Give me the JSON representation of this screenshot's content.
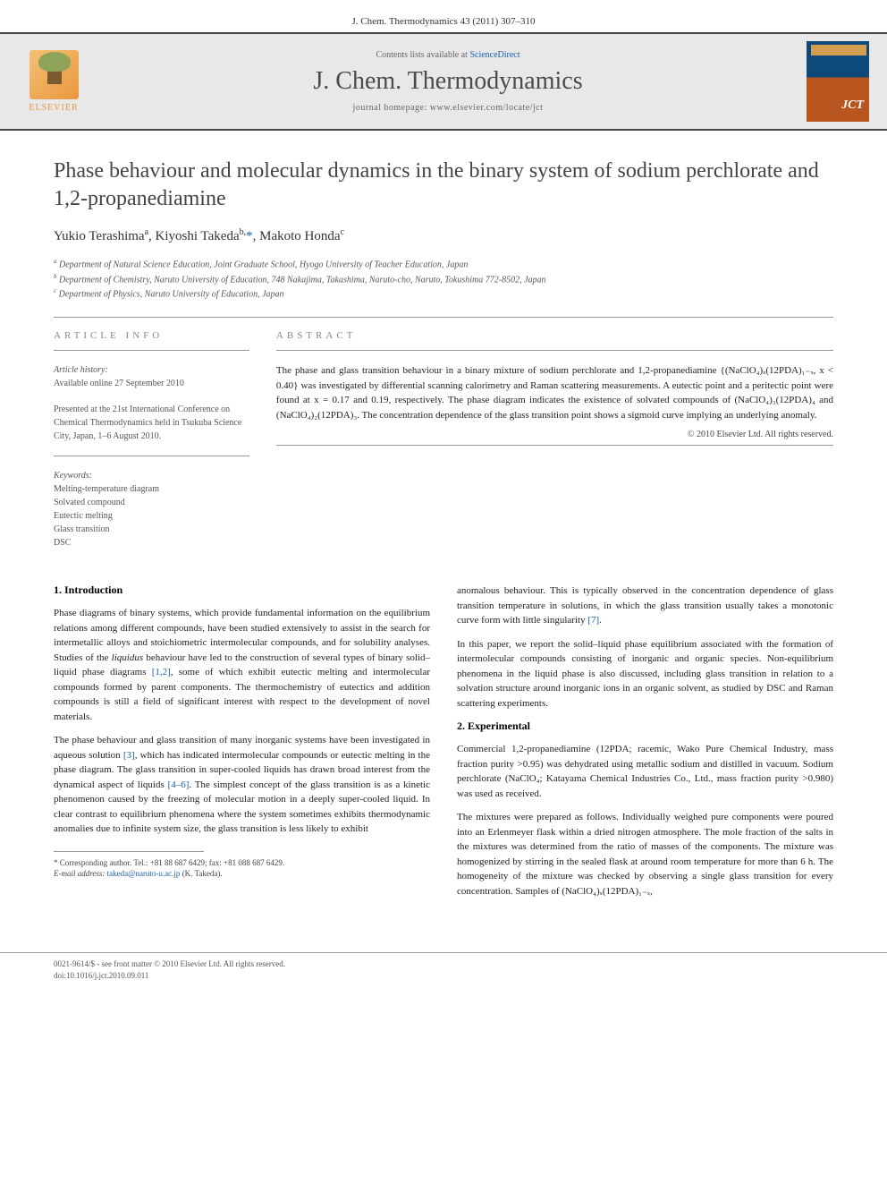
{
  "citation": "J. Chem. Thermodynamics 43 (2011) 307–310",
  "banner": {
    "publisher": "ELSEVIER",
    "contents_prefix": "Contents lists available at ",
    "contents_link": "ScienceDirect",
    "journal_name": "J. Chem. Thermodynamics",
    "homepage_label": "journal homepage: www.elsevier.com/locate/jct"
  },
  "title": "Phase behaviour and molecular dynamics in the binary system of sodium perchlorate and 1,2-propanediamine",
  "authors_html": "Yukio Terashima<sup>a</sup>, Kiyoshi Takeda<sup>b,</sup><span class='corr'>*</span>, Makoto Honda<sup>c</sup>",
  "affiliations": [
    "a Department of Natural Science Education, Joint Graduate School, Hyogo University of Teacher Education, Japan",
    "b Department of Chemistry, Naruto University of Education, 748 Nakajima, Takashima, Naruto-cho, Naruto, Tokushima 772-8502, Japan",
    "c Department of Physics, Naruto University of Education, Japan"
  ],
  "info_heading": "ARTICLE INFO",
  "abstract_heading": "ABSTRACT",
  "history_label": "Article history:",
  "history_text": "Available online 27 September 2010",
  "presented_text": "Presented at the 21st International Conference on Chemical Thermodynamics held in Tsukuba Science City, Japan, 1–6 August 2010.",
  "keywords_label": "Keywords:",
  "keywords": [
    "Melting-temperature diagram",
    "Solvated compound",
    "Eutectic melting",
    "Glass transition",
    "DSC"
  ],
  "abstract": "The phase and glass transition behaviour in a binary mixture of sodium perchlorate and 1,2-propanediamine {(NaClO₄)ₓ(12PDA)₁₋ₓ, x < 0.40} was investigated by differential scanning calorimetry and Raman scattering measurements. A eutectic point and a peritectic point were found at x = 0.17 and 0.19, respectively. The phase diagram indicates the existence of solvated compounds of (NaClO₄)₃(12PDA)₄ and (NaClO₄)₂(12PDA)₃. The concentration dependence of the glass transition point shows a sigmoid curve implying an underlying anomaly.",
  "copyright_abstract": "© 2010 Elsevier Ltd. All rights reserved.",
  "sections": {
    "intro_heading": "1. Introduction",
    "intro_p1": "Phase diagrams of binary systems, which provide fundamental information on the equilibrium relations among different compounds, have been studied extensively to assist in the search for intermetallic alloys and stoichiometric intermolecular compounds, and for solubility analyses. Studies of the liquidus behaviour have led to the construction of several types of binary solid–liquid phase diagrams [1,2], some of which exhibit eutectic melting and intermolecular compounds formed by parent components. The thermochemistry of eutectics and addition compounds is still a field of significant interest with respect to the development of novel materials.",
    "intro_p2": "The phase behaviour and glass transition of many inorganic systems have been investigated in aqueous solution [3], which has indicated intermolecular compounds or eutectic melting in the phase diagram. The glass transition in super-cooled liquids has drawn broad interest from the dynamical aspect of liquids [4–6]. The simplest concept of the glass transition is as a kinetic phenomenon caused by the freezing of molecular motion in a deeply super-cooled liquid. In clear contrast to equilibrium phenomena where the system sometimes exhibits thermodynamic anomalies due to infinite system size, the glass transition is less likely to exhibit",
    "right_p1": "anomalous behaviour. This is typically observed in the concentration dependence of glass transition temperature in solutions, in which the glass transition usually takes a monotonic curve form with little singularity [7].",
    "right_p2": "In this paper, we report the solid–liquid phase equilibrium associated with the formation of intermolecular compounds consisting of inorganic and organic species. Non-equilibrium phenomena in the liquid phase is also discussed, including glass transition in relation to a solvation structure around inorganic ions in an organic solvent, as studied by DSC and Raman scattering experiments.",
    "exp_heading": "2. Experimental",
    "exp_p1": "Commercial 1,2-propanediamine (12PDA; racemic, Wako Pure Chemical Industry, mass fraction purity >0.95) was dehydrated using metallic sodium and distilled in vacuum. Sodium perchlorate (NaClO₄; Katayama Chemical Industries Co., Ltd., mass fraction purity >0.980) was used as received.",
    "exp_p2": "The mixtures were prepared as follows. Individually weighed pure components were poured into an Erlenmeyer flask within a dried nitrogen atmosphere. The mole fraction of the salts in the mixtures was determined from the ratio of masses of the components. The mixture was homogenized by stirring in the sealed flask at around room temperature for more than 6 h. The homogeneity of the mixture was checked by observing a single glass transition for every concentration. Samples of (NaClO₄)ₓ(12PDA)₁₋ₓ,"
  },
  "footnote": {
    "corr": "* Corresponding author. Tel.: +81 88 687 6429; fax: +81 088 687 6429.",
    "email_label": "E-mail address:",
    "email": "takeda@naruto-u.ac.jp",
    "email_person": "(K. Takeda)."
  },
  "bottom": {
    "issn_line": "0021-9614/$ - see front matter © 2010 Elsevier Ltd. All rights reserved.",
    "doi_line": "doi:10.1016/j.jct.2010.09.011"
  },
  "colors": {
    "link": "#1a5fa8",
    "text": "#222",
    "heading": "#444"
  }
}
